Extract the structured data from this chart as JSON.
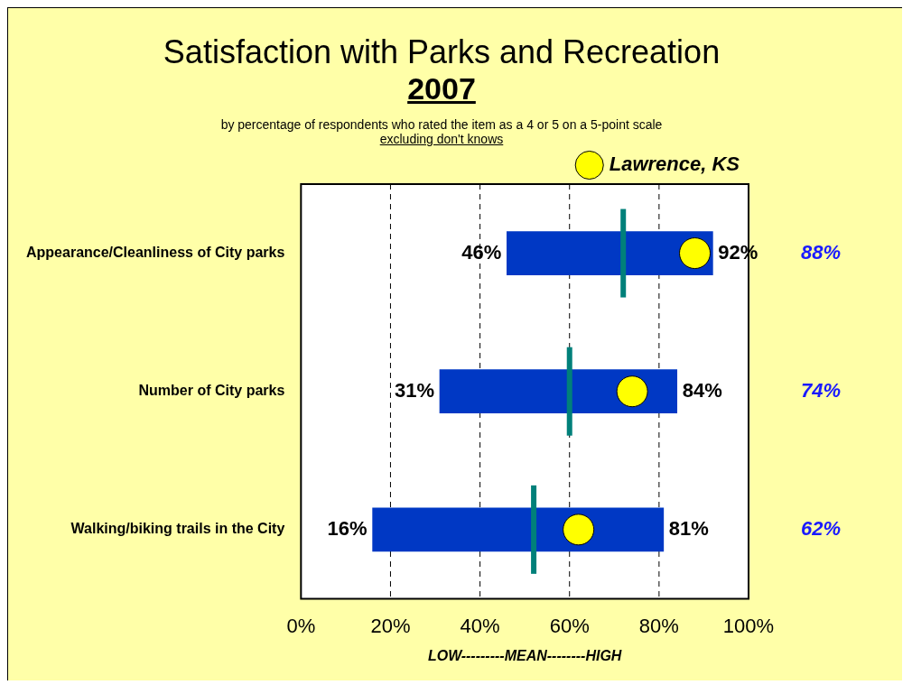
{
  "chart_data": {
    "type": "bar",
    "orientation": "horizontal",
    "title": "Satisfaction with Parks and Recreation",
    "subtitle": "2007",
    "xlabel": "LOW---------MEAN--------HIGH",
    "categories": [
      "Appearance/Cleanliness of City parks",
      "Number of City parks",
      "Walking/biking trails in the City"
    ],
    "series": [
      {
        "color": "#0038c4",
        "base": [
          46,
          31,
          16
        ],
        "values": [
          46,
          53,
          65
        ]
      },
      {
        "type": "scatter",
        "marker": "circle",
        "name": "Lawrence, KS",
        "color": "#ffff00",
        "values": [
          88,
          74,
          62
        ],
        "value_labels": [
          "88%",
          "74%",
          "62%"
        ]
      }
    ],
    "xlim": [
      0,
      100
    ],
    "xticks": [
      {
        "value": 0,
        "label": "0%"
      },
      {
        "value": 20,
        "label": "20%"
      },
      {
        "value": 40,
        "label": "40%"
      },
      {
        "value": 60,
        "label": "60%"
      },
      {
        "value": 80,
        "label": "80%"
      },
      {
        "value": 100,
        "label": "100%"
      }
    ],
    "grid": "x",
    "legend": "top right",
    "ref_lines": [
      {
        "axis": "x",
        "value": 72,
        "color": "#00807a"
      },
      {
        "axis": "x",
        "value": 60,
        "color": "#00807a"
      },
      {
        "axis": "x",
        "value": 52,
        "color": "#00807a"
      }
    ],
    "annotations": [
      "by percentage of respondents who rated the item as a 4 or 5 on a 5-point scale",
      "excluding don't knows",
      {
        "text": "46%",
        "x": 46,
        "y": "Appearance/Cleanliness of City parks"
      },
      {
        "text": "92%",
        "x": 92,
        "y": "Appearance/Cleanliness of City parks"
      },
      {
        "text": "31%",
        "x": 31,
        "y": "Number of City parks"
      },
      {
        "text": "84%",
        "x": 84,
        "y": "Number of City parks"
      },
      {
        "text": "16%",
        "x": 16,
        "y": "Walking/biking trails in the City"
      },
      {
        "text": "81%",
        "x": 81,
        "y": "Walking/biking trails in the City"
      }
    ]
  }
}
